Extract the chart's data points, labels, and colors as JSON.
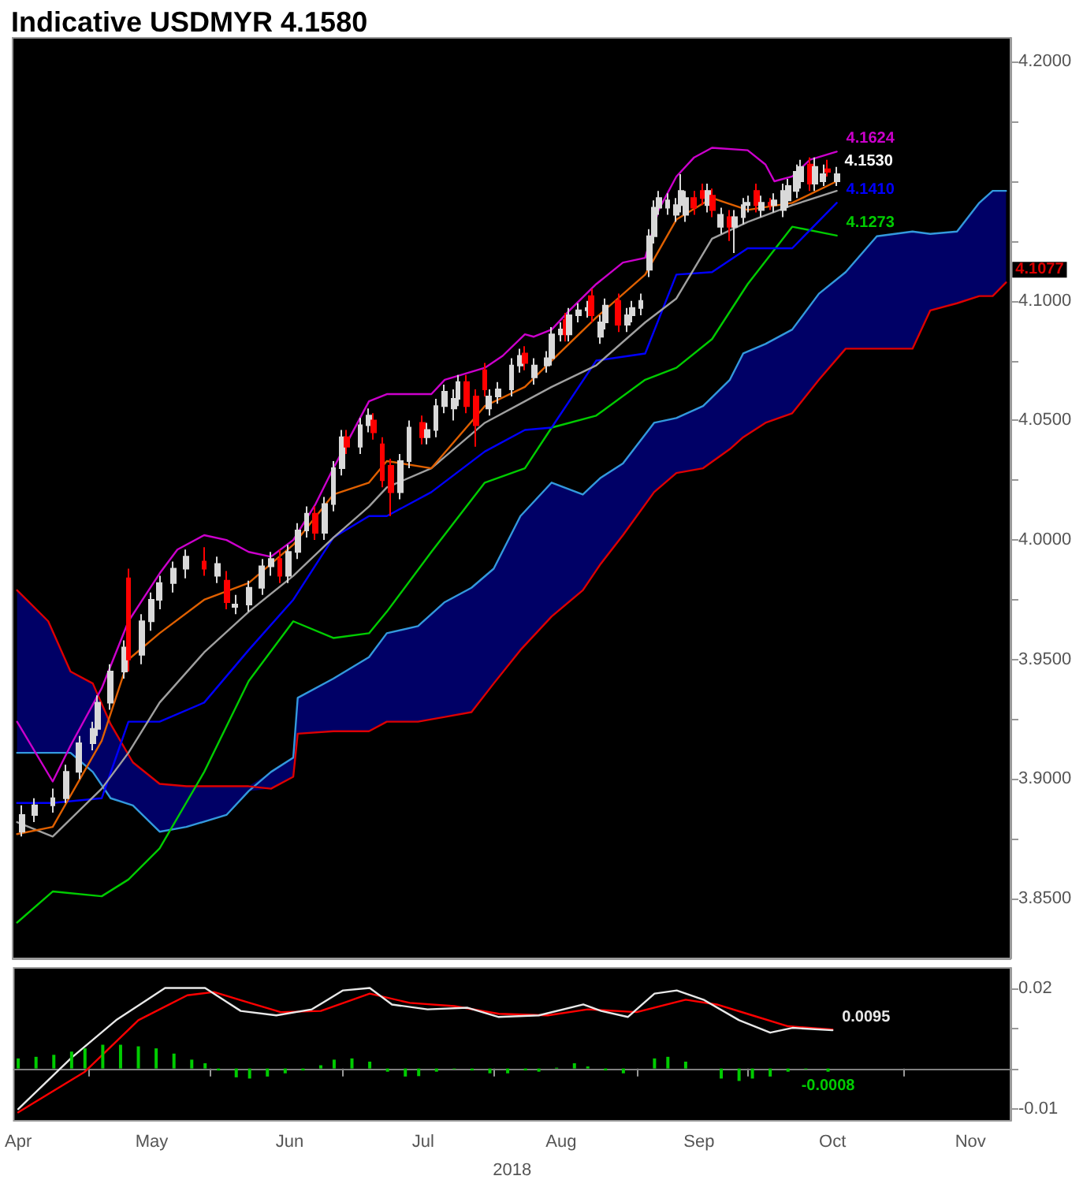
{
  "chart_data": [
    {
      "type": "candlestick",
      "title": "Indicative USDMYR 4.1580",
      "xlim": [
        "2018-03-31",
        "2018-11-10"
      ],
      "ylim": [
        3.825,
        4.21
      ],
      "yticks": [
        {
          "value": 3.85,
          "label": "3.8500"
        },
        {
          "value": 3.875,
          "label": null
        },
        {
          "value": 3.9,
          "label": "3.9000"
        },
        {
          "value": 3.925,
          "label": null
        },
        {
          "value": 3.95,
          "label": "3.9500"
        },
        {
          "value": 3.975,
          "label": null
        },
        {
          "value": 4.0,
          "label": "4.0000"
        },
        {
          "value": 4.025,
          "label": null
        },
        {
          "value": 4.05,
          "label": "4.0500"
        },
        {
          "value": 4.075,
          "label": null
        },
        {
          "value": 4.1,
          "label": "4.1000"
        },
        {
          "value": 4.125,
          "label": null
        },
        {
          "value": 4.15,
          "label": null
        },
        {
          "value": 4.175,
          "label": null
        },
        {
          "value": 4.2,
          "label": "4.2000"
        }
      ],
      "tick_labels": "y",
      "grid": false,
      "annotations": [
        {
          "text": "4.1530",
          "x": "2018-10-02",
          "y": 4.153
        }
      ],
      "series": [
        {
          "type": "line",
          "color": "#3399dd",
          "x": [
            "2018-04-01",
            "2018-04-08",
            "2018-04-13",
            "2018-04-18",
            "2018-04-22",
            "2018-04-27",
            "2018-05-03",
            "2018-05-09",
            "2018-05-18",
            "2018-05-23",
            "2018-05-28",
            "2018-06-02",
            "2018-06-03",
            "2018-06-11",
            "2018-06-19",
            "2018-06-23",
            "2018-06-30",
            "2018-07-06",
            "2018-07-12",
            "2018-07-17",
            "2018-07-23",
            "2018-07-30",
            "2018-08-06",
            "2018-08-10",
            "2018-08-15",
            "2018-08-22",
            "2018-08-27",
            "2018-09-02",
            "2018-09-08",
            "2018-09-11",
            "2018-09-16",
            "2018-09-22",
            "2018-09-28",
            "2018-10-04",
            "2018-10-11",
            "2018-10-19",
            "2018-10-23",
            "2018-10-29",
            "2018-11-03",
            "2018-11-06",
            "2018-11-09"
          ],
          "values": [
            3.911,
            3.911,
            3.911,
            3.903,
            3.892,
            3.889,
            3.878,
            3.88,
            3.885,
            3.895,
            3.903,
            3.909,
            3.934,
            3.942,
            3.951,
            3.961,
            3.964,
            3.974,
            3.98,
            3.988,
            4.01,
            4.024,
            4.019,
            4.026,
            4.032,
            4.049,
            4.051,
            4.056,
            4.067,
            4.078,
            4.082,
            4.088,
            4.103,
            4.112,
            4.127,
            4.129,
            4.128,
            4.129,
            4.141,
            4.146,
            4.146
          ],
          "lower": [
            3.911,
            3.911,
            3.911,
            3.903,
            3.892,
            3.889,
            3.878,
            3.88,
            3.885,
            3.895,
            3.896,
            3.901,
            3.919,
            3.92,
            3.92,
            3.924,
            3.924,
            3.926,
            3.928,
            3.94,
            3.954,
            3.968,
            3.979,
            3.99,
            4.002,
            4.02,
            4.028,
            4.03,
            4.038,
            4.043,
            4.049,
            4.053,
            4.067,
            4.08,
            4.08,
            4.08,
            4.096,
            4.099,
            4.102,
            4.102,
            4.1077
          ],
          "upper": [
            3.979,
            3.966,
            3.945,
            3.94,
            3.923,
            3.907,
            3.898,
            3.897,
            3.897,
            3.897,
            3.903,
            3.909,
            3.934,
            3.942,
            3.951,
            3.961,
            3.964,
            3.974,
            3.98,
            3.988,
            4.01,
            4.024,
            4.019,
            4.026,
            4.032,
            4.049,
            4.051,
            4.056,
            4.067,
            4.078,
            4.082,
            4.088,
            4.103,
            4.112,
            4.127,
            4.129,
            4.128,
            4.129,
            4.141,
            4.146,
            4.146
          ]
        },
        {
          "type": "line",
          "color": "#dd0000",
          "x": [
            "2018-04-01",
            "2018-04-08",
            "2018-04-13",
            "2018-04-18",
            "2018-04-22",
            "2018-04-27",
            "2018-05-03",
            "2018-05-09",
            "2018-05-18",
            "2018-05-23",
            "2018-05-28",
            "2018-06-02",
            "2018-06-03",
            "2018-06-11",
            "2018-06-19",
            "2018-06-23",
            "2018-06-30",
            "2018-07-06",
            "2018-07-12",
            "2018-07-17",
            "2018-07-23",
            "2018-07-30",
            "2018-08-06",
            "2018-08-10",
            "2018-08-15",
            "2018-08-22",
            "2018-08-27",
            "2018-09-02",
            "2018-09-08",
            "2018-09-11",
            "2018-09-16",
            "2018-09-22",
            "2018-09-28",
            "2018-10-04",
            "2018-10-11",
            "2018-10-19",
            "2018-10-23",
            "2018-10-29",
            "2018-11-03",
            "2018-11-06",
            "2018-11-09"
          ],
          "values": [
            3.979,
            3.966,
            3.945,
            3.94,
            3.923,
            3.907,
            3.898,
            3.897,
            3.897,
            3.897,
            3.896,
            3.901,
            3.919,
            3.92,
            3.92,
            3.924,
            3.924,
            3.926,
            3.928,
            3.94,
            3.954,
            3.968,
            3.979,
            3.99,
            4.002,
            4.02,
            4.028,
            4.03,
            4.038,
            4.043,
            4.049,
            4.053,
            4.067,
            4.08,
            4.08,
            4.08,
            4.096,
            4.099,
            4.102,
            4.102,
            4.1077
          ],
          "value_labels": [
            null,
            null,
            null,
            null,
            null,
            null,
            null,
            null,
            null,
            null,
            null,
            null,
            null,
            null,
            null,
            null,
            null,
            null,
            null,
            null,
            null,
            null,
            null,
            null,
            null,
            null,
            null,
            null,
            null,
            null,
            null,
            null,
            null,
            null,
            null,
            null,
            null,
            null,
            null,
            null,
            "4.1077"
          ]
        },
        {
          "type": "line",
          "color": "#00cc00",
          "x": [
            "2018-04-01",
            "2018-04-09",
            "2018-04-20",
            "2018-04-26",
            "2018-05-03",
            "2018-05-13",
            "2018-05-23",
            "2018-06-02",
            "2018-06-11",
            "2018-06-19",
            "2018-06-23",
            "2018-07-03",
            "2018-07-15",
            "2018-07-24",
            "2018-07-30",
            "2018-08-09",
            "2018-08-20",
            "2018-08-27",
            "2018-09-04",
            "2018-09-12",
            "2018-09-22",
            "2018-10-02"
          ],
          "values": [
            3.84,
            3.853,
            3.851,
            3.858,
            3.871,
            3.903,
            3.941,
            3.966,
            3.959,
            3.961,
            3.97,
            3.995,
            4.024,
            4.03,
            4.047,
            4.052,
            4.067,
            4.072,
            4.084,
            4.107,
            4.131,
            4.1273
          ],
          "value_labels": [
            null,
            null,
            null,
            null,
            null,
            null,
            null,
            null,
            null,
            null,
            null,
            null,
            null,
            null,
            null,
            null,
            null,
            null,
            null,
            null,
            null,
            "4.1273"
          ]
        },
        {
          "type": "line",
          "color": "#0000ff",
          "x": [
            "2018-04-01",
            "2018-04-09",
            "2018-04-20",
            "2018-04-26",
            "2018-05-03",
            "2018-05-13",
            "2018-05-23",
            "2018-06-02",
            "2018-06-11",
            "2018-06-19",
            "2018-06-23",
            "2018-07-03",
            "2018-07-15",
            "2018-07-24",
            "2018-07-30",
            "2018-08-09",
            "2018-08-20",
            "2018-08-27",
            "2018-09-04",
            "2018-09-12",
            "2018-09-22",
            "2018-10-02"
          ],
          "values": [
            3.89,
            3.89,
            3.892,
            3.924,
            3.924,
            3.932,
            3.954,
            3.975,
            4.001,
            4.01,
            4.01,
            4.02,
            4.037,
            4.046,
            4.047,
            4.075,
            4.078,
            4.111,
            4.112,
            4.122,
            4.122,
            4.141
          ],
          "value_labels": [
            null,
            null,
            null,
            null,
            null,
            null,
            null,
            null,
            null,
            null,
            null,
            null,
            null,
            null,
            null,
            null,
            null,
            null,
            null,
            null,
            null,
            "4.1410"
          ]
        },
        {
          "type": "line",
          "color": "#a0a0a0",
          "x": [
            "2018-04-01",
            "2018-04-09",
            "2018-04-20",
            "2018-04-26",
            "2018-05-03",
            "2018-05-13",
            "2018-05-23",
            "2018-06-02",
            "2018-06-11",
            "2018-06-19",
            "2018-06-23",
            "2018-07-03",
            "2018-07-15",
            "2018-07-24",
            "2018-07-30",
            "2018-08-09",
            "2018-08-20",
            "2018-08-27",
            "2018-09-04",
            "2018-09-12",
            "2018-09-22",
            "2018-10-02"
          ],
          "values": [
            3.882,
            3.876,
            3.896,
            3.911,
            3.932,
            3.953,
            3.97,
            3.985,
            4.001,
            4.014,
            4.022,
            4.03,
            4.049,
            4.058,
            4.064,
            4.073,
            4.091,
            4.101,
            4.126,
            4.133,
            4.14,
            4.146
          ]
        },
        {
          "type": "line",
          "color": "#e06000",
          "x": [
            "2018-04-01",
            "2018-04-09",
            "2018-04-20",
            "2018-04-26",
            "2018-05-03",
            "2018-05-13",
            "2018-05-23",
            "2018-06-02",
            "2018-06-11",
            "2018-06-19",
            "2018-06-23",
            "2018-07-03",
            "2018-07-15",
            "2018-07-24",
            "2018-07-30",
            "2018-08-09",
            "2018-08-20",
            "2018-08-27",
            "2018-09-04",
            "2018-09-12",
            "2018-09-22",
            "2018-10-02"
          ],
          "values": [
            3.877,
            3.88,
            3.916,
            3.95,
            3.961,
            3.975,
            3.982,
            3.998,
            4.019,
            4.024,
            4.033,
            4.03,
            4.056,
            4.064,
            4.075,
            4.093,
            4.111,
            4.134,
            4.143,
            4.138,
            4.141,
            4.15
          ]
        },
        {
          "type": "line",
          "color": "#cc00cc",
          "x": [
            "2018-04-01",
            "2018-04-09",
            "2018-04-13",
            "2018-04-20",
            "2018-04-26",
            "2018-05-03",
            "2018-05-07",
            "2018-05-13",
            "2018-05-18",
            "2018-05-23",
            "2018-05-28",
            "2018-06-02",
            "2018-06-07",
            "2018-06-11",
            "2018-06-19",
            "2018-06-23",
            "2018-07-03",
            "2018-07-06",
            "2018-07-15",
            "2018-07-19",
            "2018-07-24",
            "2018-07-26",
            "2018-07-30",
            "2018-08-03",
            "2018-08-09",
            "2018-08-15",
            "2018-08-20",
            "2018-08-23",
            "2018-08-27",
            "2018-08-31",
            "2018-09-04",
            "2018-09-12",
            "2018-09-16",
            "2018-09-18",
            "2018-09-22",
            "2018-09-26",
            "2018-10-02"
          ],
          "values": [
            3.924,
            3.899,
            3.914,
            3.938,
            3.966,
            3.986,
            3.996,
            4.002,
            4.0,
            3.995,
            3.993,
            4.0,
            4.015,
            4.03,
            4.058,
            4.061,
            4.061,
            4.067,
            4.072,
            4.077,
            4.086,
            4.085,
            4.088,
            4.096,
            4.107,
            4.116,
            4.118,
            4.138,
            4.152,
            4.16,
            4.164,
            4.163,
            4.157,
            4.15,
            4.152,
            4.159,
            4.1624
          ],
          "value_labels": [
            null,
            null,
            null,
            null,
            null,
            null,
            null,
            null,
            null,
            null,
            null,
            null,
            null,
            null,
            null,
            null,
            null,
            null,
            null,
            null,
            null,
            null,
            null,
            null,
            null,
            null,
            null,
            null,
            null,
            null,
            null,
            null,
            null,
            null,
            null,
            null,
            "4.1624"
          ]
        },
        {
          "x": [
            "2018-04-02",
            "2018-04-05",
            "2018-04-09",
            "2018-04-12",
            "2018-04-15",
            "2018-04-18",
            "2018-04-19",
            "2018-04-22",
            "2018-04-25",
            "2018-04-26",
            "2018-04-29",
            "2018-05-01",
            "2018-05-03",
            "2018-05-06",
            "2018-05-09",
            "2018-05-13",
            "2018-05-16",
            "2018-05-18",
            "2018-05-20",
            "2018-05-23",
            "2018-05-26",
            "2018-05-28",
            "2018-05-30",
            "2018-06-01",
            "2018-06-03",
            "2018-06-05",
            "2018-06-07",
            "2018-06-09",
            "2018-06-11",
            "2018-06-13",
            "2018-06-14",
            "2018-06-17",
            "2018-06-19",
            "2018-06-20",
            "2018-06-22",
            "2018-06-24",
            "2018-06-26",
            "2018-06-28",
            "2018-07-01",
            "2018-07-02",
            "2018-07-04",
            "2018-07-06",
            "2018-07-08",
            "2018-07-09",
            "2018-07-11",
            "2018-07-13",
            "2018-07-15",
            "2018-07-16",
            "2018-07-18",
            "2018-07-21",
            "2018-07-23",
            "2018-07-24",
            "2018-07-26",
            "2018-07-29",
            "2018-07-30",
            "2018-08-01",
            "2018-08-02",
            "2018-08-03",
            "2018-08-05",
            "2018-08-07",
            "2018-08-08",
            "2018-08-10",
            "2018-08-11",
            "2018-08-14",
            "2018-08-16",
            "2018-08-17",
            "2018-08-19",
            "2018-08-21",
            "2018-08-22",
            "2018-08-23",
            "2018-08-25",
            "2018-08-27",
            "2018-08-28",
            "2018-08-29",
            "2018-08-31",
            "2018-09-02",
            "2018-09-03",
            "2018-09-04",
            "2018-09-06",
            "2018-09-08",
            "2018-09-09",
            "2018-09-11",
            "2018-09-12",
            "2018-09-14",
            "2018-09-15",
            "2018-09-17",
            "2018-09-18",
            "2018-09-20",
            "2018-09-21",
            "2018-09-23",
            "2018-09-24",
            "2018-09-26",
            "2018-09-27",
            "2018-09-29",
            "2018-09-30",
            "2018-10-02"
          ],
          "ohlc": [
            [
              3.878,
              3.889,
              3.876,
              3.885
            ],
            [
              3.885,
              3.892,
              3.882,
              3.889
            ],
            [
              3.889,
              3.896,
              3.886,
              3.892
            ],
            [
              3.892,
              3.906,
              3.89,
              3.903
            ],
            [
              3.903,
              3.918,
              3.9,
              3.915
            ],
            [
              3.915,
              3.924,
              3.912,
              3.921
            ],
            [
              3.921,
              3.935,
              3.918,
              3.932
            ],
            [
              3.932,
              3.948,
              3.929,
              3.945
            ],
            [
              3.945,
              3.958,
              3.942,
              3.955
            ],
            [
              3.984,
              3.988,
              3.945,
              3.95
            ],
            [
              3.952,
              3.969,
              3.948,
              3.966
            ],
            [
              3.966,
              3.978,
              3.962,
              3.975
            ],
            [
              3.975,
              3.985,
              3.971,
              3.982
            ],
            [
              3.982,
              3.991,
              3.978,
              3.988
            ],
            [
              3.988,
              3.996,
              3.984,
              3.993
            ],
            [
              3.991,
              3.997,
              3.985,
              3.988
            ],
            [
              3.985,
              3.993,
              3.982,
              3.99
            ],
            [
              3.983,
              3.987,
              3.971,
              3.974
            ],
            [
              3.972,
              3.977,
              3.969,
              3.973
            ],
            [
              3.973,
              3.983,
              3.97,
              3.98
            ],
            [
              3.98,
              3.992,
              3.977,
              3.989
            ],
            [
              3.989,
              3.995,
              3.985,
              3.992
            ],
            [
              3.992,
              3.996,
              3.982,
              3.985
            ],
            [
              3.985,
              3.998,
              3.982,
              3.995
            ],
            [
              3.995,
              4.007,
              3.992,
              4.004
            ],
            [
              4.004,
              4.014,
              4.001,
              4.011
            ],
            [
              4.011,
              4.014,
              4.0,
              4.003
            ],
            [
              4.003,
              4.018,
              4.0,
              4.015
            ],
            [
              4.015,
              4.033,
              4.012,
              4.03
            ],
            [
              4.03,
              4.046,
              4.027,
              4.043
            ],
            [
              4.043,
              4.046,
              4.036,
              4.039
            ],
            [
              4.039,
              4.051,
              4.036,
              4.048
            ],
            [
              4.048,
              4.055,
              4.045,
              4.052
            ],
            [
              4.05,
              4.053,
              4.042,
              4.045
            ],
            [
              4.04,
              4.043,
              4.022,
              4.025
            ],
            [
              4.031,
              4.034,
              4.01,
              4.02
            ],
            [
              4.02,
              4.036,
              4.017,
              4.033
            ],
            [
              4.033,
              4.05,
              4.03,
              4.047
            ],
            [
              4.049,
              4.052,
              4.04,
              4.043
            ],
            [
              4.043,
              4.049,
              4.04,
              4.046
            ],
            [
              4.046,
              4.059,
              4.043,
              4.056
            ],
            [
              4.056,
              4.065,
              4.053,
              4.062
            ],
            [
              4.055,
              4.063,
              4.05,
              4.059
            ],
            [
              4.059,
              4.069,
              4.056,
              4.066
            ],
            [
              4.066,
              4.069,
              4.053,
              4.056
            ],
            [
              4.06,
              4.063,
              4.039,
              4.048
            ],
            [
              4.071,
              4.074,
              4.06,
              4.063
            ],
            [
              4.055,
              4.063,
              4.052,
              4.06
            ],
            [
              4.06,
              4.066,
              4.057,
              4.063
            ],
            [
              4.063,
              4.076,
              4.06,
              4.073
            ],
            [
              4.073,
              4.08,
              4.07,
              4.077
            ],
            [
              4.078,
              4.081,
              4.071,
              4.074
            ],
            [
              4.068,
              4.076,
              4.065,
              4.073
            ],
            [
              4.073,
              4.079,
              4.07,
              4.076
            ],
            [
              4.076,
              4.089,
              4.073,
              4.086
            ],
            [
              4.086,
              4.091,
              4.083,
              4.088
            ],
            [
              4.092,
              4.095,
              4.083,
              4.086
            ],
            [
              4.086,
              4.097,
              4.083,
              4.094
            ],
            [
              4.094,
              4.099,
              4.091,
              4.096
            ],
            [
              4.096,
              4.1,
              4.093,
              4.097
            ],
            [
              4.102,
              4.105,
              4.091,
              4.094
            ],
            [
              4.085,
              4.094,
              4.082,
              4.091
            ],
            [
              4.091,
              4.101,
              4.088,
              4.098
            ],
            [
              4.1,
              4.103,
              4.087,
              4.09
            ],
            [
              4.09,
              4.097,
              4.087,
              4.094
            ],
            [
              4.094,
              4.1,
              4.091,
              4.097
            ],
            [
              4.097,
              4.103,
              4.094,
              4.1
            ],
            [
              4.113,
              4.13,
              4.11,
              4.127
            ],
            [
              4.127,
              4.142,
              4.124,
              4.139
            ],
            [
              4.139,
              4.146,
              4.136,
              4.143
            ],
            [
              4.139,
              4.145,
              4.136,
              4.142
            ],
            [
              4.136,
              4.143,
              4.133,
              4.14
            ],
            [
              4.14,
              4.153,
              4.137,
              4.146
            ],
            [
              4.136,
              4.146,
              4.133,
              4.143
            ],
            [
              4.143,
              4.146,
              4.136,
              4.139
            ],
            [
              4.146,
              4.149,
              4.14,
              4.143
            ],
            [
              4.14,
              4.149,
              4.137,
              4.146
            ],
            [
              4.144,
              4.147,
              4.135,
              4.138
            ],
            [
              4.131,
              4.139,
              4.128,
              4.136
            ],
            [
              4.135,
              4.138,
              4.125,
              4.131
            ],
            [
              4.131,
              4.138,
              4.12,
              4.135
            ],
            [
              4.135,
              4.143,
              4.132,
              4.14
            ],
            [
              4.14,
              4.144,
              4.137,
              4.141
            ],
            [
              4.146,
              4.149,
              4.137,
              4.14
            ],
            [
              4.138,
              4.144,
              4.135,
              4.141
            ],
            [
              4.141,
              4.143,
              4.138,
              4.14
            ],
            [
              4.14,
              4.145,
              4.137,
              4.142
            ],
            [
              4.138,
              4.149,
              4.135,
              4.146
            ],
            [
              4.142,
              4.151,
              4.139,
              4.148
            ],
            [
              4.146,
              4.157,
              4.143,
              4.154
            ],
            [
              4.15,
              4.159,
              4.147,
              4.156
            ],
            [
              4.157,
              4.16,
              4.146,
              4.149
            ],
            [
              4.149,
              4.16,
              4.146,
              4.156
            ],
            [
              4.15,
              4.157,
              4.148,
              4.153
            ],
            [
              4.155,
              4.159,
              4.152,
              4.154
            ],
            [
              4.15,
              4.156,
              4.148,
              4.153
            ]
          ],
          "colors": [
            "#d9d9d9",
            "#d9d9d9",
            "#d9d9d9",
            "#d9d9d9",
            "#d9d9d9",
            "#d9d9d9",
            "#d9d9d9",
            "#d9d9d9",
            "#d9d9d9",
            "#ff0000",
            "#d9d9d9",
            "#d9d9d9",
            "#d9d9d9",
            "#d9d9d9",
            "#d9d9d9",
            "#ff0000",
            "#d9d9d9",
            "#ff0000",
            "#d9d9d9",
            "#d9d9d9",
            "#d9d9d9",
            "#d9d9d9",
            "#ff0000",
            "#d9d9d9",
            "#d9d9d9",
            "#d9d9d9",
            "#ff0000",
            "#d9d9d9",
            "#d9d9d9",
            "#d9d9d9",
            "#ff0000",
            "#d9d9d9",
            "#d9d9d9",
            "#ff0000",
            "#ff0000",
            "#ff0000",
            "#d9d9d9",
            "#d9d9d9",
            "#ff0000",
            "#d9d9d9",
            "#d9d9d9",
            "#d9d9d9",
            "#d9d9d9",
            "#d9d9d9",
            "#ff0000",
            "#ff0000",
            "#ff0000",
            "#d9d9d9",
            "#d9d9d9",
            "#d9d9d9",
            "#d9d9d9",
            "#ff0000",
            "#d9d9d9",
            "#d9d9d9",
            "#d9d9d9",
            "#d9d9d9",
            "#ff0000",
            "#d9d9d9",
            "#d9d9d9",
            "#d9d9d9",
            "#ff0000",
            "#d9d9d9",
            "#d9d9d9",
            "#ff0000",
            "#d9d9d9",
            "#d9d9d9",
            "#d9d9d9",
            "#d9d9d9",
            "#d9d9d9",
            "#d9d9d9",
            "#d9d9d9",
            "#d9d9d9",
            "#d9d9d9",
            "#d9d9d9",
            "#ff0000",
            "#ff0000",
            "#d9d9d9",
            "#ff0000",
            "#d9d9d9",
            "#ff0000",
            "#d9d9d9",
            "#d9d9d9",
            "#d9d9d9",
            "#ff0000",
            "#d9d9d9",
            "#ff0000",
            "#d9d9d9",
            "#d9d9d9",
            "#d9d9d9",
            "#d9d9d9",
            "#d9d9d9",
            "#ff0000",
            "#d9d9d9",
            "#d9d9d9",
            "#ff0000",
            "#d9d9d9"
          ]
        }
      ]
    },
    {
      "type": "line",
      "xlabel": "2018",
      "xlim": [
        "2018-03-31",
        "2018-11-10"
      ],
      "ylim": [
        -0.013,
        0.025
      ],
      "xticks": [
        {
          "value": "2018-04-01",
          "label": "Apr"
        },
        {
          "value": "2018-04-17",
          "label": null
        },
        {
          "value": "2018-05-01",
          "label": "May"
        },
        {
          "value": "2018-05-14",
          "label": null
        },
        {
          "value": "2018-06-01",
          "label": "Jun"
        },
        {
          "value": "2018-06-13",
          "label": null
        },
        {
          "value": "2018-07-01",
          "label": "Jul"
        },
        {
          "value": "2018-07-17",
          "label": null
        },
        {
          "value": "2018-08-01",
          "label": "Aug"
        },
        {
          "value": "2018-08-18",
          "label": null
        },
        {
          "value": "2018-09-01",
          "label": "Sep"
        },
        {
          "value": "2018-09-12",
          "label": null
        },
        {
          "value": "2018-10-01",
          "label": "Oct"
        },
        {
          "value": "2018-10-17",
          "label": null
        },
        {
          "value": "2018-11-01",
          "label": "Nov"
        }
      ],
      "yticks": [
        -0.01,
        {
          "value": 0,
          "label": null
        },
        {
          "value": 0.01,
          "label": null
        },
        0.02
      ],
      "grid": false,
      "ref_lines": [
        {
          "axis": "y",
          "value": 0,
          "color": "#808080"
        }
      ],
      "series": [
        {
          "type": "bar",
          "color": "#00cc00",
          "x": [
            "2018-04-01",
            "2018-04-05",
            "2018-04-09",
            "2018-04-13",
            "2018-04-16",
            "2018-04-20",
            "2018-04-24",
            "2018-04-28",
            "2018-05-02",
            "2018-05-06",
            "2018-05-10",
            "2018-05-13",
            "2018-05-16",
            "2018-05-20",
            "2018-05-23",
            "2018-05-27",
            "2018-05-31",
            "2018-06-04",
            "2018-06-08",
            "2018-06-11",
            "2018-06-15",
            "2018-06-19",
            "2018-06-23",
            "2018-06-27",
            "2018-06-30",
            "2018-07-04",
            "2018-07-08",
            "2018-07-12",
            "2018-07-16",
            "2018-07-20",
            "2018-07-24",
            "2018-07-27",
            "2018-07-31",
            "2018-08-04",
            "2018-08-07",
            "2018-08-11",
            "2018-08-15",
            "2018-08-19",
            "2018-08-22",
            "2018-08-25",
            "2018-08-29",
            "2018-09-02",
            "2018-09-06",
            "2018-09-10",
            "2018-09-13",
            "2018-09-17",
            "2018-09-21",
            "2018-09-25",
            "2018-09-30"
          ],
          "values": [
            0.0025,
            0.0029,
            0.0034,
            0.0042,
            0.005,
            0.0059,
            0.0059,
            0.0055,
            0.005,
            0.0037,
            0.0022,
            0.0013,
            -0.0005,
            -0.0022,
            -0.0025,
            -0.002,
            -0.0012,
            -0.0005,
            0.0008,
            0.0022,
            0.0025,
            0.0017,
            -0.0008,
            -0.002,
            -0.0019,
            -0.0008,
            -0.0002,
            -0.0005,
            -0.0012,
            -0.0012,
            -0.0005,
            -0.0008,
            0.0002,
            0.0013,
            0.0005,
            -0.0005,
            -0.0012,
            0,
            0.0025,
            0.0029,
            0.0017,
            0,
            -0.0025,
            -0.0031,
            -0.0025,
            -0.002,
            -0.0008,
            -0.0002,
            -0.0008
          ],
          "value_labels": [
            null,
            null,
            null,
            null,
            null,
            null,
            null,
            null,
            null,
            null,
            null,
            null,
            null,
            null,
            null,
            null,
            null,
            null,
            null,
            null,
            null,
            null,
            null,
            null,
            null,
            null,
            null,
            null,
            null,
            null,
            null,
            null,
            null,
            null,
            null,
            null,
            null,
            null,
            null,
            null,
            null,
            null,
            null,
            null,
            null,
            null,
            null,
            null,
            "-0.0008"
          ]
        },
        {
          "color": "#ff0000",
          "x": [
            "2018-04-01",
            "2018-04-16",
            "2018-04-28",
            "2018-05-09",
            "2018-05-15",
            "2018-05-23",
            "2018-05-30",
            "2018-06-08",
            "2018-06-19",
            "2018-06-28",
            "2018-07-08",
            "2018-07-18",
            "2018-07-29",
            "2018-08-07",
            "2018-08-18",
            "2018-08-29",
            "2018-09-05",
            "2018-09-13",
            "2018-09-21",
            "2018-10-01"
          ],
          "values": [
            -0.0109,
            -0.0008,
            0.012,
            0.0182,
            0.019,
            0.0163,
            0.014,
            0.0143,
            0.0186,
            0.0163,
            0.0155,
            0.0136,
            0.0132,
            0.0147,
            0.014,
            0.0171,
            0.0159,
            0.0132,
            0.0105,
            0.0097
          ]
        },
        {
          "color": "#e8e8e8",
          "x": [
            "2018-04-01",
            "2018-04-13",
            "2018-04-23",
            "2018-05-04",
            "2018-05-13",
            "2018-05-21",
            "2018-05-29",
            "2018-06-06",
            "2018-06-13",
            "2018-06-19",
            "2018-06-24",
            "2018-07-02",
            "2018-07-11",
            "2018-07-18",
            "2018-07-27",
            "2018-08-06",
            "2018-08-10",
            "2018-08-16",
            "2018-08-22",
            "2018-08-27",
            "2018-09-02",
            "2018-09-10",
            "2018-09-17",
            "2018-09-22",
            "2018-10-01"
          ],
          "values": [
            -0.0101,
            0.0027,
            0.012,
            0.02,
            0.02,
            0.0143,
            0.0132,
            0.0147,
            0.0194,
            0.02,
            0.0159,
            0.0147,
            0.0151,
            0.0128,
            0.0132,
            0.0159,
            0.0143,
            0.0128,
            0.0186,
            0.0194,
            0.0171,
            0.012,
            0.0089,
            0.0101,
            0.0095
          ],
          "value_labels": [
            null,
            null,
            null,
            null,
            null,
            null,
            null,
            null,
            null,
            null,
            null,
            null,
            null,
            null,
            null,
            null,
            null,
            null,
            null,
            null,
            null,
            null,
            null,
            null,
            "0.0095"
          ]
        }
      ]
    }
  ]
}
